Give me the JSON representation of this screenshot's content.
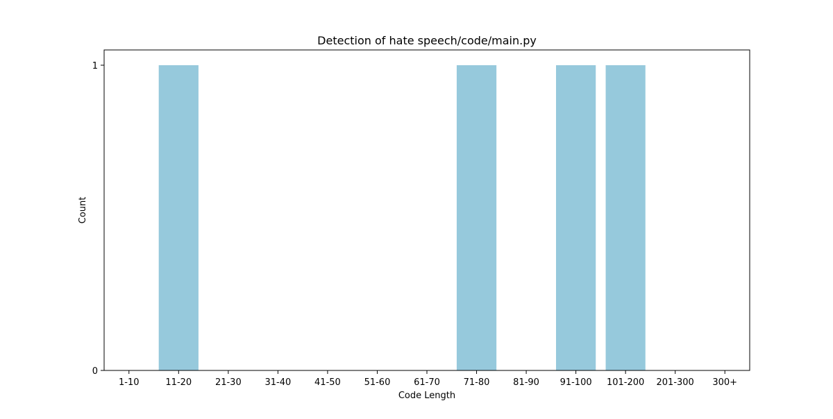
{
  "chart_data": {
    "type": "bar",
    "title": "Detection of hate speech/code/main.py",
    "xlabel": "Code Length",
    "ylabel": "Count",
    "categories": [
      "1-10",
      "11-20",
      "21-30",
      "31-40",
      "41-50",
      "51-60",
      "61-70",
      "71-80",
      "81-90",
      "91-100",
      "101-200",
      "201-300",
      "300+"
    ],
    "values": [
      0,
      1,
      0,
      0,
      0,
      0,
      0,
      1,
      0,
      1,
      1,
      0,
      0
    ],
    "yticks": [
      0,
      1
    ],
    "ylim": [
      0,
      1.05
    ],
    "bar_color": "#96c9dc",
    "grid": false,
    "legend": "none"
  }
}
